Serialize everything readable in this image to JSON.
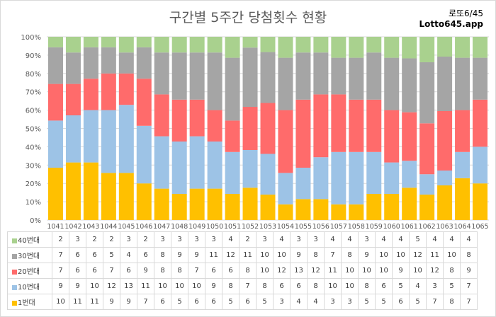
{
  "title": "구간별 5주간 당첨횟수 현황",
  "brand": {
    "line1": "로또6/45",
    "line2": "Lotto645.app"
  },
  "colors": {
    "g1": "#ffc000",
    "g10": "#9dc3e6",
    "g20": "#ff6b6b",
    "g30": "#a5a5a5",
    "g40": "#a9d18e"
  },
  "chart_data": {
    "type": "bar",
    "stacked": "percent",
    "title": "구간별 5주간 당첨횟수 현황",
    "categories": [
      "1041",
      "1042",
      "1043",
      "1044",
      "1045",
      "1046",
      "1047",
      "1048",
      "1049",
      "1050",
      "1051",
      "1052",
      "1053",
      "1054",
      "1055",
      "1056",
      "1057",
      "1058",
      "1059",
      "1060",
      "1061",
      "1062",
      "1063",
      "1064",
      "1065"
    ],
    "ylim": [
      0,
      100
    ],
    "yticks": [
      "0%",
      "10%",
      "20%",
      "30%",
      "40%",
      "50%",
      "60%",
      "70%",
      "80%",
      "90%",
      "100%"
    ],
    "grid": true,
    "legend": "table",
    "series": [
      {
        "name": "1번대",
        "color": "#ffc000",
        "values": [
          10,
          11,
          11,
          9,
          9,
          7,
          6,
          5,
          6,
          6,
          5,
          6,
          5,
          3,
          4,
          4,
          3,
          3,
          5,
          5,
          6,
          5,
          7,
          8,
          7
        ]
      },
      {
        "name": "10번대",
        "color": "#9dc3e6",
        "values": [
          9,
          9,
          10,
          12,
          13,
          11,
          10,
          10,
          10,
          9,
          8,
          7,
          8,
          6,
          6,
          8,
          10,
          10,
          8,
          6,
          5,
          4,
          3,
          5,
          7
        ]
      },
      {
        "name": "20번대",
        "color": "#ff6b6b",
        "values": [
          7,
          6,
          6,
          7,
          6,
          9,
          8,
          8,
          7,
          6,
          6,
          8,
          10,
          12,
          13,
          12,
          11,
          10,
          10,
          10,
          9,
          10,
          12,
          8,
          9
        ]
      },
      {
        "name": "30번대",
        "color": "#a5a5a5",
        "values": [
          7,
          6,
          6,
          5,
          4,
          6,
          8,
          9,
          9,
          11,
          12,
          11,
          10,
          10,
          9,
          8,
          7,
          8,
          9,
          10,
          10,
          12,
          11,
          10,
          8
        ]
      },
      {
        "name": "40번대",
        "color": "#a9d18e",
        "values": [
          2,
          3,
          2,
          2,
          3,
          2,
          3,
          3,
          3,
          3,
          4,
          2,
          3,
          4,
          3,
          3,
          4,
          4,
          3,
          4,
          4,
          5,
          4,
          4,
          4
        ]
      }
    ]
  }
}
